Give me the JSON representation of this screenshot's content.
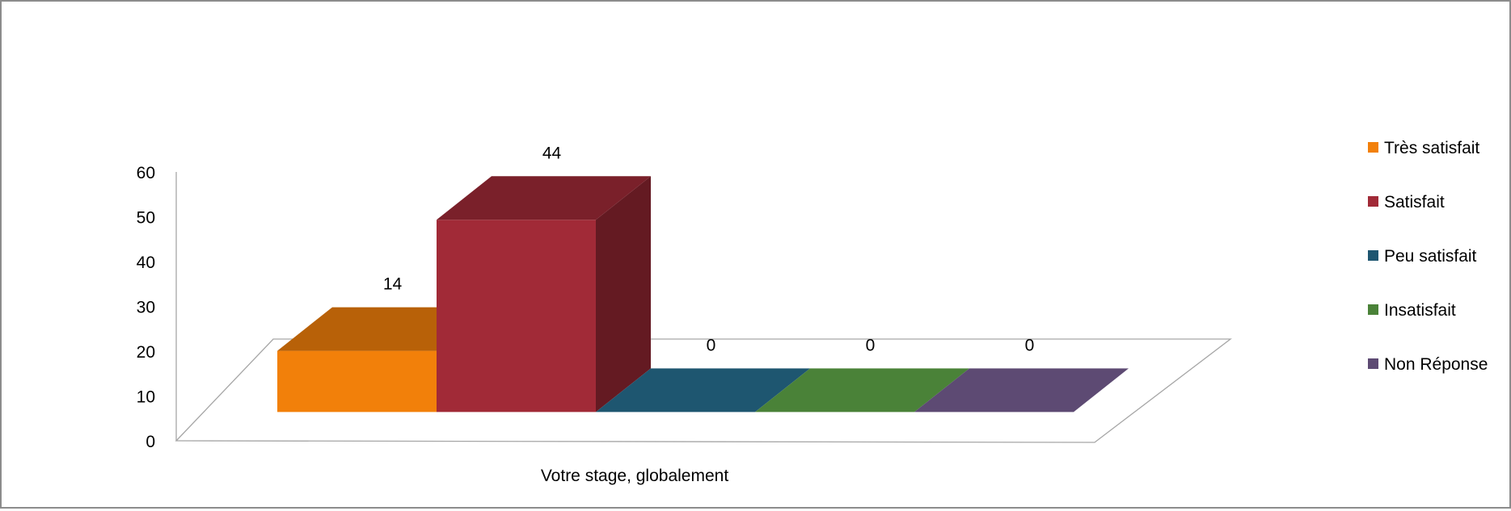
{
  "chart_data": {
    "type": "bar",
    "three_d": true,
    "categories": [
      "Votre stage, globalement"
    ],
    "xlabel": "Votre stage, globalement",
    "ylim": [
      0,
      60
    ],
    "yticks": [
      0,
      10,
      20,
      30,
      40,
      50,
      60
    ],
    "grid": false,
    "legend_position": "right",
    "series": [
      {
        "name": "Très satisfait",
        "values": [
          14
        ],
        "color": "#F2800A"
      },
      {
        "name": "Satisfait",
        "values": [
          44
        ],
        "color": "#A12A37"
      },
      {
        "name": "Peu satisfait",
        "values": [
          0
        ],
        "color": "#1E5670"
      },
      {
        "name": "Insatisfait",
        "values": [
          0
        ],
        "color": "#4A8238"
      },
      {
        "name": "Non Réponse",
        "values": [
          0
        ],
        "color": "#5D4A73"
      }
    ]
  }
}
